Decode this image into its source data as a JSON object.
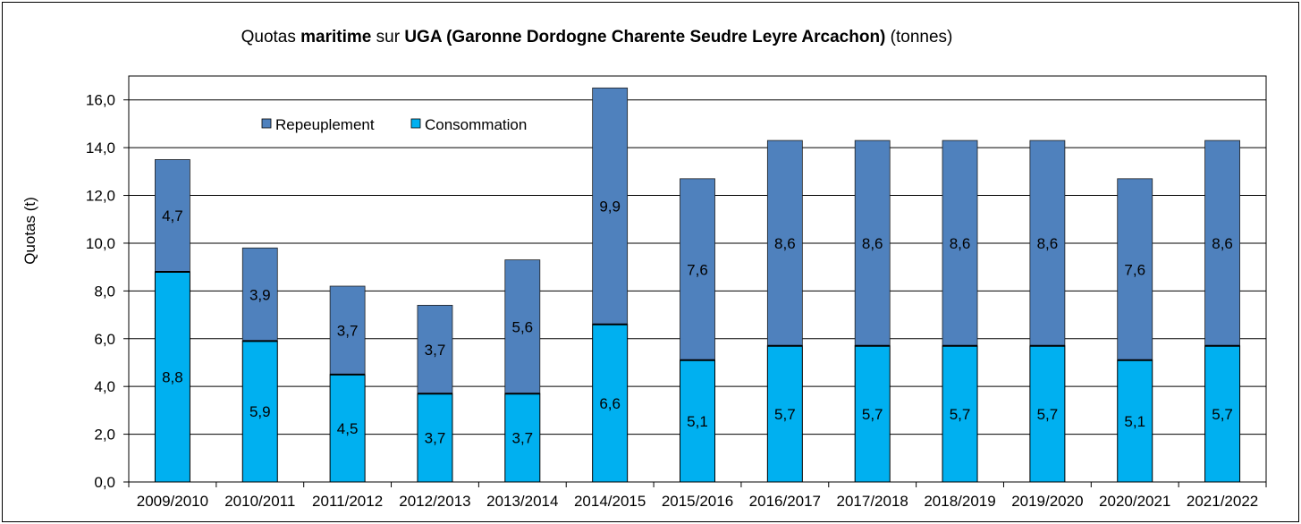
{
  "title": {
    "prefix": "Quotas ",
    "bold1": "maritime",
    "mid": " sur ",
    "bold2": "UGA (Garonne Dordogne Charente Seudre Leyre Arcachon)",
    "suffix": " (tonnes)"
  },
  "chart_data": {
    "type": "bar",
    "stacked": true,
    "title": "Quotas maritime sur UGA (Garonne Dordogne Charente Seudre Leyre Arcachon) (tonnes)",
    "xlabel": "",
    "ylabel": "Quotas (t)",
    "ylim": [
      0,
      17
    ],
    "yticks": [
      "0,0",
      "2,0",
      "4,0",
      "6,0",
      "8,0",
      "10,0",
      "12,0",
      "14,0",
      "16,0"
    ],
    "grid": true,
    "legend_placement": "top-left",
    "categories": [
      "2009/2010",
      "2010/2011",
      "2011/2012",
      "2012/2013",
      "2013/2014",
      "2014/2015",
      "2015/2016",
      "2016/2017",
      "2017/2018",
      "2018/2019",
      "2019/2020",
      "2020/2021",
      "2021/2022"
    ],
    "series": [
      {
        "name": "Consommation",
        "color": "#00B0F0",
        "values": [
          8.8,
          5.9,
          4.5,
          3.7,
          3.7,
          6.6,
          5.1,
          5.7,
          5.7,
          5.7,
          5.7,
          5.1,
          5.7
        ],
        "labels": [
          "8,8",
          "5,9",
          "4,5",
          "3,7",
          "3,7",
          "6,6",
          "5,1",
          "5,7",
          "5,7",
          "5,7",
          "5,7",
          "5,1",
          "5,7"
        ]
      },
      {
        "name": "Repeuplement",
        "color": "#4F81BD",
        "values": [
          4.7,
          3.9,
          3.7,
          3.7,
          5.6,
          9.9,
          7.6,
          8.6,
          8.6,
          8.6,
          8.6,
          7.6,
          8.6
        ],
        "labels": [
          "4,7",
          "3,9",
          "3,7",
          "3,7",
          "5,6",
          "9,9",
          "7,6",
          "8,6",
          "8,6",
          "8,6",
          "8,6",
          "7,6",
          "8,6"
        ]
      }
    ]
  }
}
